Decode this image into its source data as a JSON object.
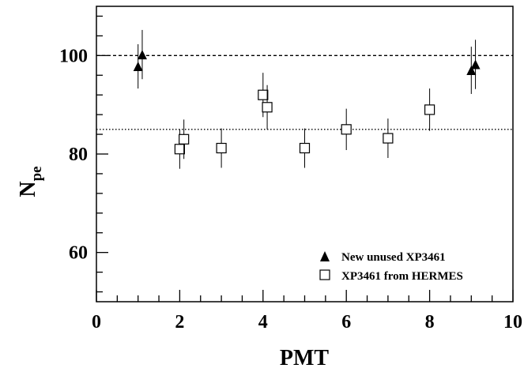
{
  "chart_data": {
    "type": "scatter",
    "xlabel": "PMT",
    "ylabel_main": "N",
    "ylabel_sub": "pe",
    "xlim": [
      0,
      10
    ],
    "ylim": [
      50,
      110
    ],
    "x_ticks": [
      0,
      2,
      4,
      6,
      8,
      10
    ],
    "x_tick_labels": [
      "0",
      "2",
      "4",
      "6",
      "8",
      "10"
    ],
    "y_ticks": [
      60,
      80,
      100
    ],
    "y_tick_labels": [
      "60",
      "80",
      "100"
    ],
    "reference_lines": [
      {
        "y": 100,
        "style": "dashed"
      },
      {
        "y": 85,
        "style": "dotted"
      }
    ],
    "legend_position": "bottom-right",
    "series": [
      {
        "name": "New unused XP3461",
        "marker": "filled-triangle",
        "points": [
          {
            "x": 1.0,
            "y": 97.8,
            "err": 4.5
          },
          {
            "x": 1.1,
            "y": 100.2,
            "err": 5.0
          },
          {
            "x": 9.0,
            "y": 97.0,
            "err": 4.8
          },
          {
            "x": 9.1,
            "y": 98.2,
            "err": 5.0
          }
        ]
      },
      {
        "name": "XP3461 from HERMES",
        "marker": "open-square",
        "points": [
          {
            "x": 2.0,
            "y": 81.0,
            "err": 4.0
          },
          {
            "x": 2.1,
            "y": 83.0,
            "err": 4.0
          },
          {
            "x": 3.0,
            "y": 81.2,
            "err": 4.0
          },
          {
            "x": 4.0,
            "y": 92.0,
            "err": 4.5
          },
          {
            "x": 4.1,
            "y": 89.5,
            "err": 4.5
          },
          {
            "x": 5.0,
            "y": 81.2,
            "err": 4.0
          },
          {
            "x": 6.0,
            "y": 85.0,
            "err": 4.2
          },
          {
            "x": 7.0,
            "y": 83.2,
            "err": 4.0
          },
          {
            "x": 8.0,
            "y": 89.0,
            "err": 4.3
          }
        ]
      }
    ]
  }
}
